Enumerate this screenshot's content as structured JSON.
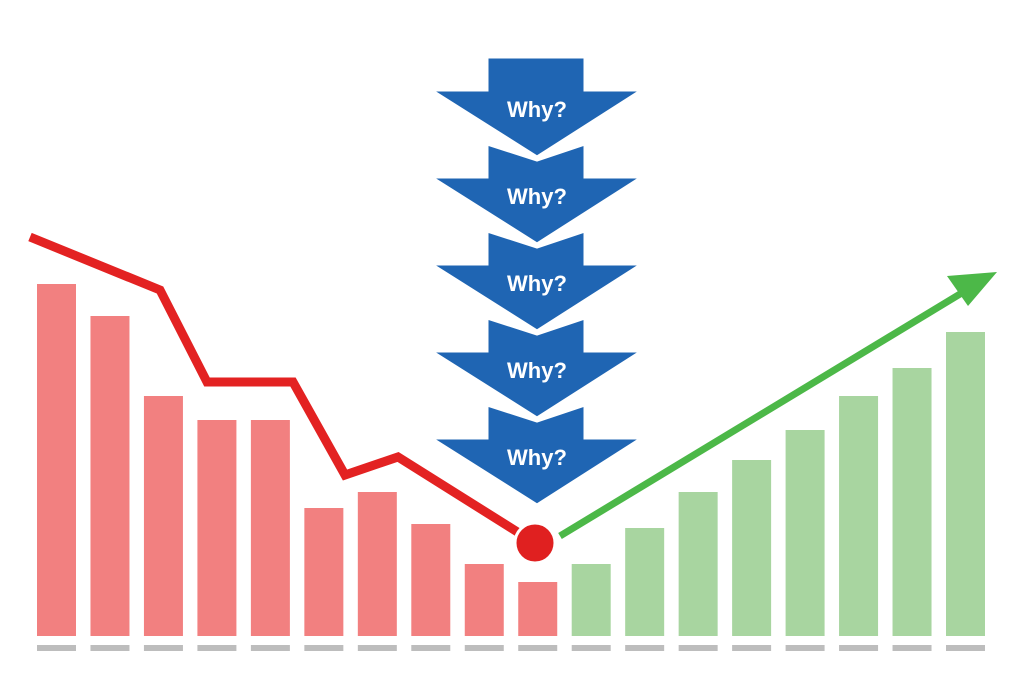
{
  "chart_data": {
    "type": "bar",
    "annotations": [
      "Why?",
      "Why?",
      "Why?",
      "Why?",
      "Why?"
    ],
    "ylim": [
      0,
      100
    ],
    "series": [
      {
        "color": "#f28080",
        "values": [
          88,
          80,
          60,
          54,
          54,
          32,
          36,
          28,
          18,
          13.5,
          null,
          null,
          null,
          null,
          null,
          null,
          null,
          null
        ]
      },
      {
        "color": "#a8d5a0",
        "values": [
          null,
          null,
          null,
          null,
          null,
          null,
          null,
          null,
          null,
          null,
          18,
          27,
          36,
          44,
          51.5,
          60,
          67,
          76
        ]
      }
    ]
  }
}
